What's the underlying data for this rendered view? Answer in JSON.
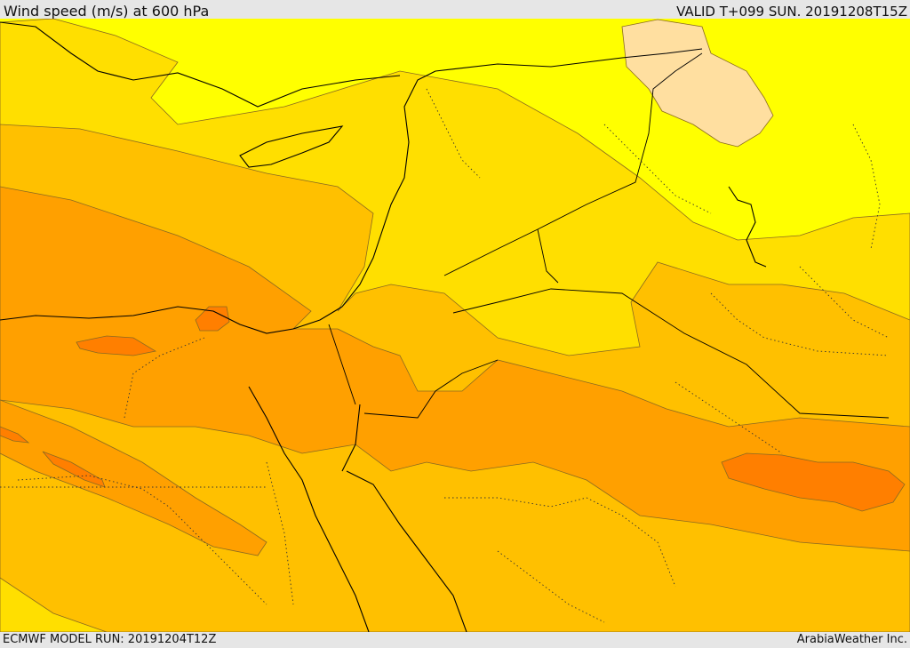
{
  "header": {
    "title": "Wind speed (m/s) at 600 hPa",
    "valid": "VALID T+099 SUN. 20191208T15Z"
  },
  "footer": {
    "model_run": "ECMWF MODEL RUN: 20191204T12Z",
    "credit": "ArabiaWeather Inc."
  },
  "colors": {
    "band_lightest": "#ffff00",
    "band_light": "#ffdf00",
    "band_mid": "#ffc000",
    "band_orange": "#ffa000",
    "band_strong": "#ff7f00",
    "peach": "#ffdfa0"
  }
}
